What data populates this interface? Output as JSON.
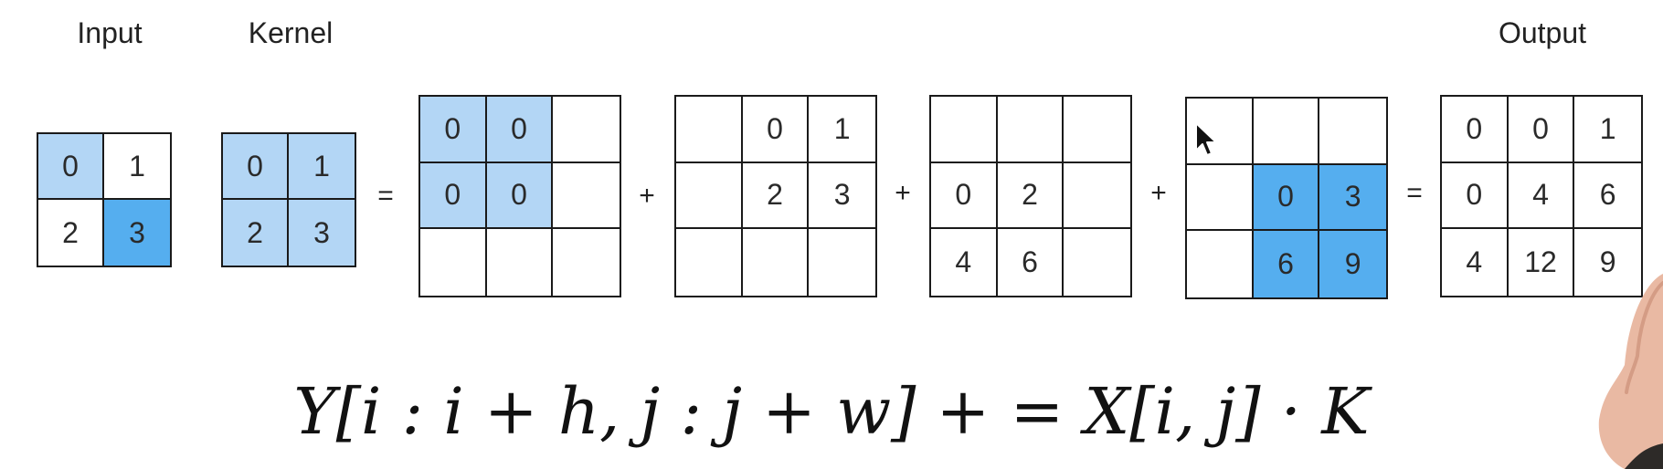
{
  "labels": {
    "input": "Input",
    "kernel": "Kernel",
    "output": "Output"
  },
  "operators": {
    "eq1": "=",
    "plus1": "+",
    "plus2": "+",
    "plus3": "+",
    "eq2": "="
  },
  "grids": {
    "input": {
      "cells": [
        [
          "0",
          "1"
        ],
        [
          "2",
          "3"
        ]
      ],
      "shade": [
        [
          "light",
          ""
        ],
        [
          "",
          "dark"
        ]
      ]
    },
    "kernel": {
      "cells": [
        [
          "0",
          "1"
        ],
        [
          "2",
          "3"
        ]
      ],
      "shade": [
        [
          "light",
          "light"
        ],
        [
          "light",
          "light"
        ]
      ]
    },
    "partial1": {
      "cells": [
        [
          "0",
          "0",
          ""
        ],
        [
          "0",
          "0",
          ""
        ],
        [
          "",
          "",
          ""
        ]
      ],
      "shade": [
        [
          "light",
          "light",
          ""
        ],
        [
          "light",
          "light",
          ""
        ],
        [
          "",
          "",
          ""
        ]
      ]
    },
    "partial2": {
      "cells": [
        [
          "",
          "0",
          "1"
        ],
        [
          "",
          "2",
          "3"
        ],
        [
          "",
          "",
          ""
        ]
      ],
      "shade": [
        [
          "",
          "",
          ""
        ],
        [
          "",
          "",
          ""
        ],
        [
          "",
          "",
          ""
        ]
      ]
    },
    "partial3": {
      "cells": [
        [
          "",
          "",
          ""
        ],
        [
          "0",
          "2",
          ""
        ],
        [
          "4",
          "6",
          ""
        ]
      ],
      "shade": [
        [
          "",
          "",
          ""
        ],
        [
          "",
          "",
          ""
        ],
        [
          "",
          "",
          ""
        ]
      ]
    },
    "partial4": {
      "cells": [
        [
          "",
          "",
          ""
        ],
        [
          "",
          "0",
          "3"
        ],
        [
          "",
          "6",
          "9"
        ]
      ],
      "shade": [
        [
          "",
          "",
          ""
        ],
        [
          "",
          "dark",
          "dark"
        ],
        [
          "",
          "dark",
          "dark"
        ]
      ]
    },
    "output": {
      "cells": [
        [
          "0",
          "0",
          "1"
        ],
        [
          "0",
          "4",
          "6"
        ],
        [
          "4",
          "12",
          "9"
        ]
      ],
      "shade": [
        [
          "",
          "",
          ""
        ],
        [
          "",
          "",
          ""
        ],
        [
          "",
          "",
          ""
        ]
      ]
    }
  },
  "formula": "Y[i : i + h, j : j + w] + = X[i, j] · K",
  "colors": {
    "light_blue": "#b3d6f5",
    "dark_blue": "#55aeef"
  }
}
